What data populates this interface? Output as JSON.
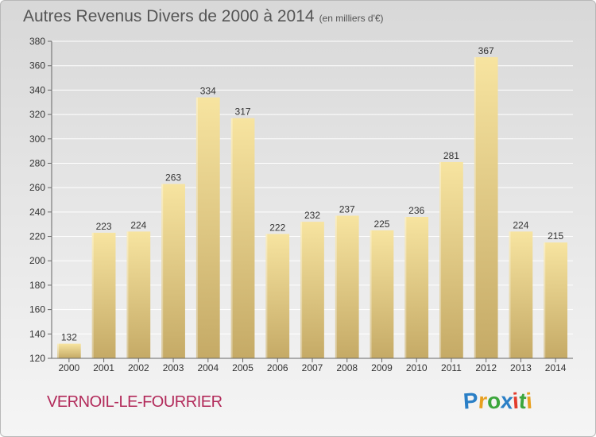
{
  "title": "Autres Revenus Divers de 2000 à 2014",
  "subtitle": "(en milliers d'€)",
  "commune": "VERNOIL-LE-FOURRIER",
  "logo": {
    "letters": [
      {
        "ch": "P",
        "color": "#2a7fc6"
      },
      {
        "ch": "r",
        "color": "#e8a020"
      },
      {
        "ch": "o",
        "color": "#3ca63c"
      },
      {
        "ch": "x",
        "color": "#2a7fc6"
      },
      {
        "ch": "i",
        "color": "#e23c2c"
      },
      {
        "ch": "t",
        "color": "#3ca63c"
      },
      {
        "ch": "i",
        "color": "#e8a020"
      }
    ]
  },
  "colors": {
    "bar_top": "#f7e4a0",
    "bar_bottom": "#c5aa66",
    "grid": "#ffffff",
    "axis": "#666666"
  },
  "chart_data": {
    "type": "bar",
    "categories": [
      "2000",
      "2001",
      "2002",
      "2003",
      "2004",
      "2005",
      "2006",
      "2007",
      "2008",
      "2009",
      "2010",
      "2011",
      "2012",
      "2013",
      "2014"
    ],
    "values": [
      132,
      223,
      224,
      263,
      334,
      317,
      222,
      232,
      237,
      225,
      236,
      281,
      367,
      224,
      215
    ],
    "title": "Autres Revenus Divers de 2000 à 2014",
    "subtitle": "(en milliers d'€)",
    "xlabel": "",
    "ylabel": "",
    "ylim": [
      120,
      380
    ],
    "yticks": [
      120,
      140,
      160,
      180,
      200,
      220,
      240,
      260,
      280,
      300,
      320,
      340,
      360,
      380
    ],
    "grid": true,
    "data_labels": true
  }
}
